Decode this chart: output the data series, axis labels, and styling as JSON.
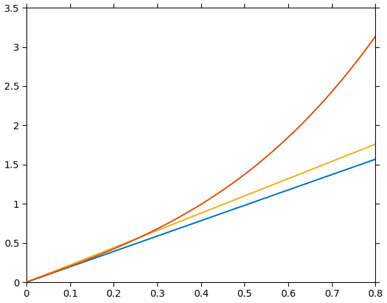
{
  "xlim": [
    0,
    0.8
  ],
  "ylim": [
    0,
    3.5
  ],
  "xticks": [
    0.0,
    0.1,
    0.2,
    0.3,
    0.4,
    0.5,
    0.6,
    0.7,
    0.8
  ],
  "yticks": [
    0.0,
    0.5,
    1.0,
    1.5,
    2.0,
    2.5,
    3.0,
    3.5
  ],
  "line_red_color": "#D95319",
  "line_yellow_color": "#EDB120",
  "line_blue_color": "#0072BD",
  "line_width": 1.5,
  "background_color": "#ffffff",
  "figsize": [
    5.56,
    4.36
  ],
  "dpi": 100,
  "n_points": 500,
  "red_a": 2.0,
  "red_b": 3.0,
  "yellow_slope": 2.2,
  "blue_slope": 1.96
}
